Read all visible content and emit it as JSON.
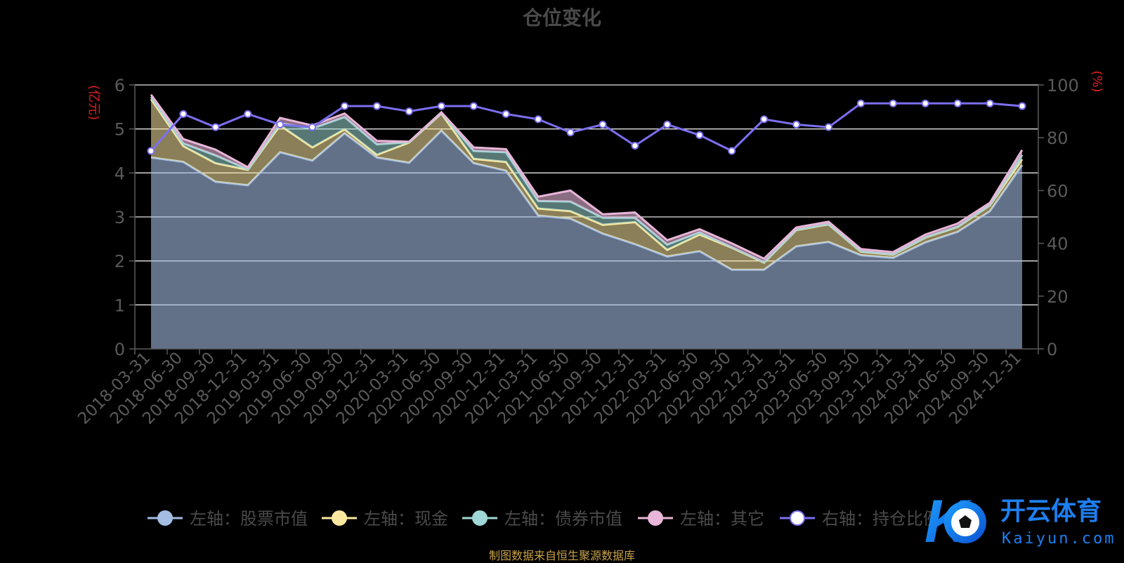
{
  "title": "仓位变化",
  "source": "制图数据来自恒生聚源数据库",
  "watermark": {
    "brand": "开云体育",
    "domain": "Kaiyun.com"
  },
  "colors": {
    "background": "#000000",
    "stock": "#a3bde3",
    "cash": "#fbe8a0",
    "bond": "#9fd8d6",
    "other": "#e8b6d8",
    "position": "#7b6ff0",
    "axis_unit": "#e02020",
    "tick": "#5a5a5a",
    "grid": "#e6e6e6"
  },
  "chart_data": {
    "type": "area",
    "title": "仓位变化",
    "x": [
      "2018-03-31",
      "2018-06-30",
      "2018-09-30",
      "2018-12-31",
      "2019-03-31",
      "2019-06-30",
      "2019-09-30",
      "2019-12-31",
      "2020-03-31",
      "2020-06-30",
      "2020-09-30",
      "2020-12-31",
      "2021-03-31",
      "2021-06-30",
      "2021-09-30",
      "2021-12-31",
      "2022-03-31",
      "2022-06-30",
      "2022-09-30",
      "2022-12-31",
      "2023-03-31",
      "2023-06-30",
      "2023-09-30",
      "2023-12-31",
      "2024-03-31",
      "2024-06-30",
      "2024-09-30",
      "2024-12-31"
    ],
    "y_left": {
      "label": "(亿元)",
      "range": [
        0,
        6
      ],
      "ticks": [
        0,
        1,
        2,
        3,
        4,
        5,
        6
      ]
    },
    "y_right": {
      "label": "(%)",
      "range": [
        0,
        100
      ],
      "ticks": [
        0,
        20,
        40,
        60,
        80,
        100
      ]
    },
    "stacked": true,
    "legend_position": "bottom",
    "grid": true,
    "series": [
      {
        "name": "左轴：股票市值",
        "axis": "left",
        "type": "area",
        "values": [
          4.35,
          4.25,
          3.8,
          3.72,
          4.47,
          4.28,
          4.9,
          4.35,
          4.23,
          4.96,
          4.22,
          4.05,
          3.03,
          2.96,
          2.62,
          2.38,
          2.1,
          2.22,
          1.8,
          1.8,
          2.33,
          2.43,
          2.13,
          2.07,
          2.42,
          2.66,
          3.13,
          4.18
        ]
      },
      {
        "name": "左轴：现金",
        "axis": "left",
        "type": "area",
        "values": [
          1.33,
          0.36,
          0.42,
          0.35,
          0.61,
          0.3,
          0.09,
          0.06,
          0.46,
          0.39,
          0.1,
          0.2,
          0.16,
          0.17,
          0.2,
          0.5,
          0.15,
          0.38,
          0.5,
          0.16,
          0.37,
          0.4,
          0.08,
          0.07,
          0.11,
          0.11,
          0.13,
          0.13
        ]
      },
      {
        "name": "左轴：债券市值",
        "axis": "left",
        "type": "area",
        "values": [
          0.05,
          0.06,
          0.18,
          0.01,
          0.05,
          0.43,
          0.28,
          0.24,
          0.01,
          0.01,
          0.18,
          0.22,
          0.17,
          0.22,
          0.16,
          0.1,
          0.12,
          0.05,
          0.01,
          0.01,
          0.01,
          0.01,
          0.01,
          0.01,
          0.01,
          0.01,
          0.01,
          0.1
        ]
      },
      {
        "name": "左轴：其它",
        "axis": "left",
        "type": "area",
        "values": [
          0.05,
          0.1,
          0.13,
          0.05,
          0.12,
          0.07,
          0.08,
          0.08,
          0.01,
          0.02,
          0.08,
          0.07,
          0.1,
          0.25,
          0.08,
          0.12,
          0.1,
          0.07,
          0.09,
          0.08,
          0.05,
          0.05,
          0.05,
          0.05,
          0.06,
          0.07,
          0.05,
          0.11
        ]
      },
      {
        "name": "右轴：持仓比例",
        "axis": "right",
        "type": "line",
        "values": [
          75,
          89,
          84,
          89,
          85,
          84,
          92,
          92,
          90,
          92,
          92,
          89,
          87,
          82,
          85,
          77,
          85,
          81,
          75,
          87,
          85,
          84,
          93,
          93,
          93,
          93,
          93,
          92
        ]
      }
    ]
  }
}
